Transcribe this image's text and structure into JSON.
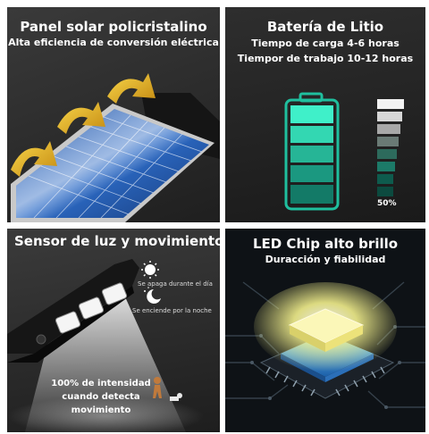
{
  "panels": {
    "solar": {
      "title": "Panel solar policristalino",
      "subtitle": "Alta eficiencia de conversión eléctrica"
    },
    "battery": {
      "title": "Batería de Litio",
      "line1": "Tiempo de carga 4-6 horas",
      "line2": "Tiempor de trabajo 10-12 horas",
      "percent_label": "50%",
      "colors": {
        "accent": "#2ad6b4",
        "dark": "#0e5b4d"
      }
    },
    "sensor": {
      "title": "Sensor de luz y movimiento",
      "day_text": "Se apaga durante el día",
      "night_text": "Se enciende por la noche",
      "intensity_line1": "100% de intensidad",
      "intensity_line2": "cuando detecta",
      "intensity_line3": "movimiento",
      "icons": [
        "sun-icon",
        "moon-icon",
        "walking-person-icon"
      ]
    },
    "led": {
      "title": "LED Chip alto brillo",
      "subtitle": "Duracción y fiabilidad",
      "colors": {
        "glow": "#f3f08c",
        "chip": "#3fa9ff"
      }
    }
  }
}
